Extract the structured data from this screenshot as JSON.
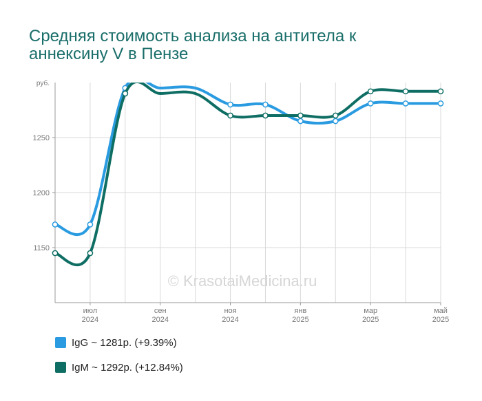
{
  "chart_data": {
    "type": "line",
    "title_lines": [
      "Средняя стоимость анализа на антитела к",
      "аннексину V в Пензе"
    ],
    "y_unit_label": "руб.",
    "watermark": "© KrasotaiMedicina.ru",
    "ylim": [
      1100,
      1300
    ],
    "yticks": [
      1150,
      1200,
      1250
    ],
    "x": [
      0,
      1,
      2,
      3,
      4,
      5,
      6,
      7,
      8,
      9,
      10,
      11
    ],
    "xticks": [
      {
        "index": 1,
        "month": "июл",
        "year": "2024"
      },
      {
        "index": 3,
        "month": "сен",
        "year": "2024"
      },
      {
        "index": 5,
        "month": "ноя",
        "year": "2024"
      },
      {
        "index": 7,
        "month": "янв",
        "year": "2025"
      },
      {
        "index": 9,
        "month": "мар",
        "year": "2025"
      },
      {
        "index": 11,
        "month": "май",
        "year": "2025"
      }
    ],
    "series": [
      {
        "name": "IgG",
        "color": "#2a9be0",
        "values": [
          1171,
          1171,
          1295,
          1295,
          1295,
          1280,
          1280,
          1265,
          1265,
          1281,
          1281,
          1281
        ]
      },
      {
        "name": "IgM",
        "color": "#0f6e64",
        "values": [
          1145,
          1145,
          1290,
          1290,
          1290,
          1270,
          1270,
          1270,
          1270,
          1292,
          1292,
          1292
        ]
      }
    ],
    "legend": [
      {
        "label": "IgG ~ 1281р. (+9.39%)",
        "color": "#2a9be0"
      },
      {
        "label": "IgM ~ 1292р. (+12.84%)",
        "color": "#0f6e64"
      }
    ],
    "grid": true,
    "legend_position": "bottom-left"
  }
}
